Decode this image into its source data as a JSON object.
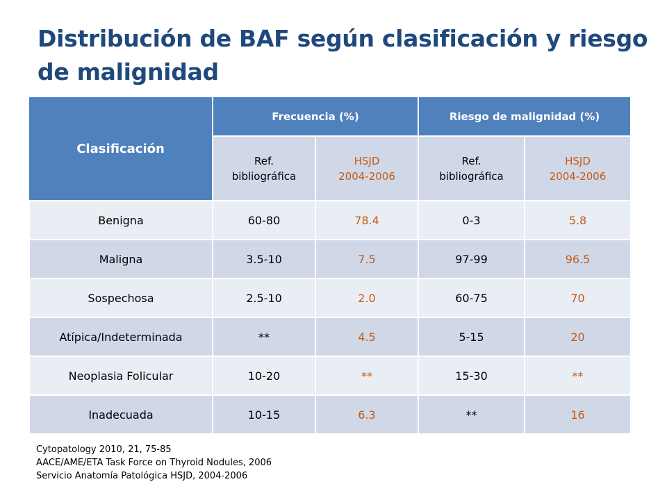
{
  "title": "Distribución de BAF según clasificación y riesgo de malignidad",
  "table": {
    "header_main": "Clasificación",
    "group_frecuencia": "Frecuencia (%)",
    "group_riesgo": "Riesgo de malignidad (%)",
    "sub_ref_line1": "Ref.",
    "sub_ref_line2": "bibliográfica",
    "sub_hsjd_line1": "HSJD",
    "sub_hsjd_line2": "2004-2006",
    "rows": [
      {
        "label": "Benigna",
        "freq_ref": "60-80",
        "freq_hsjd": "78.4",
        "risk_ref": "0-3",
        "risk_hsjd": "5.8"
      },
      {
        "label": "Maligna",
        "freq_ref": "3.5-10",
        "freq_hsjd": "7.5",
        "risk_ref": "97-99",
        "risk_hsjd": "96.5"
      },
      {
        "label": "Sospechosa",
        "freq_ref": "2.5-10",
        "freq_hsjd": "2.0",
        "risk_ref": "60-75",
        "risk_hsjd": "70"
      },
      {
        "label": "Atípica/Indeterminada",
        "freq_ref": "**",
        "freq_hsjd": "4.5",
        "risk_ref": "5-15",
        "risk_hsjd": "20"
      },
      {
        "label": "Neoplasia Folicular",
        "freq_ref": "10-20",
        "freq_hsjd": "**",
        "risk_ref": "15-30",
        "risk_hsjd": "**"
      },
      {
        "label": "Inadecuada",
        "freq_ref": "10-15",
        "freq_hsjd": "6.3",
        "risk_ref": "**",
        "risk_hsjd": "16"
      }
    ]
  },
  "notes": [
    "Cytopatology 2010, 21, 75-85",
    "AACE/AME/ETA Task Force on Thyroid Nodules, 2006",
    "Servicio Anatomía Patológica HSJD, 2004-2006"
  ],
  "colors": {
    "title": "#1f497d",
    "header": "#4f81bd",
    "row_light": "#e9edf4",
    "row_dark": "#d0d8e8",
    "hsjd_text": "#c55a11"
  }
}
